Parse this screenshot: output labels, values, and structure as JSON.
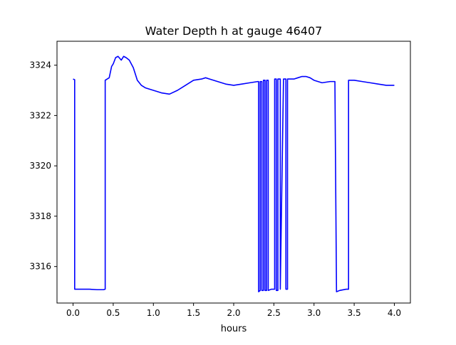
{
  "chart_data": {
    "type": "line",
    "title": "Water Depth h at gauge 46407",
    "xlabel": "hours",
    "ylabel": "",
    "xlim": [
      -0.2,
      4.2
    ],
    "ylim": [
      3314.55,
      3324.95
    ],
    "xticks": [
      0.0,
      0.5,
      1.0,
      1.5,
      2.0,
      2.5,
      3.0,
      3.5,
      4.0
    ],
    "xtick_labels": [
      "0.0",
      "0.5",
      "1.0",
      "1.5",
      "2.0",
      "2.5",
      "3.0",
      "3.5",
      "4.0"
    ],
    "yticks": [
      3316,
      3318,
      3320,
      3322,
      3324
    ],
    "ytick_labels": [
      "3316",
      "3318",
      "3320",
      "3322",
      "3324"
    ],
    "grid": false,
    "color": "#0000ff",
    "series": [
      {
        "x": [
          0.0,
          0.02,
          0.02,
          0.05,
          0.1,
          0.2,
          0.3,
          0.38,
          0.4,
          0.4,
          0.45,
          0.48,
          0.5,
          0.53,
          0.56,
          0.6,
          0.63,
          0.66,
          0.7,
          0.75,
          0.8,
          0.85,
          0.9,
          1.0,
          1.1,
          1.2,
          1.3,
          1.4,
          1.5,
          1.6,
          1.65,
          1.7,
          1.8,
          1.9,
          2.0,
          2.1,
          2.2,
          2.3,
          2.31,
          2.31,
          2.33,
          2.33,
          2.35,
          2.35,
          2.37,
          2.37,
          2.39,
          2.39,
          2.41,
          2.41,
          2.43,
          2.43,
          2.47,
          2.51,
          2.51,
          2.53,
          2.53,
          2.55,
          2.55,
          2.58,
          2.58,
          2.62,
          2.65,
          2.65,
          2.67,
          2.67,
          2.75,
          2.8,
          2.85,
          2.9,
          2.95,
          3.0,
          3.1,
          3.2,
          3.26,
          3.28,
          3.28,
          3.32,
          3.4,
          3.43,
          3.43,
          3.5,
          3.6,
          3.7,
          3.8,
          3.9,
          4.0
        ],
        "y": [
          3323.45,
          3323.42,
          3315.1,
          3315.1,
          3315.1,
          3315.1,
          3315.08,
          3315.08,
          3315.1,
          3323.4,
          3323.5,
          3323.95,
          3324.05,
          3324.3,
          3324.35,
          3324.2,
          3324.35,
          3324.3,
          3324.2,
          3323.9,
          3323.4,
          3323.2,
          3323.1,
          3323.0,
          3322.9,
          3322.85,
          3323.0,
          3323.2,
          3323.4,
          3323.45,
          3323.5,
          3323.45,
          3323.35,
          3323.25,
          3323.2,
          3323.25,
          3323.3,
          3323.35,
          3323.35,
          3315.0,
          3315.05,
          3323.35,
          3323.35,
          3315.05,
          3315.05,
          3323.4,
          3323.4,
          3315.05,
          3315.05,
          3323.4,
          3323.4,
          3315.05,
          3315.1,
          3315.1,
          3323.45,
          3323.45,
          3315.05,
          3315.05,
          3323.45,
          3323.45,
          3315.1,
          3323.45,
          3323.45,
          3315.1,
          3315.1,
          3323.45,
          3323.45,
          3323.5,
          3323.55,
          3323.55,
          3323.5,
          3323.4,
          3323.3,
          3323.35,
          3323.35,
          3315.0,
          3315.0,
          3315.05,
          3315.1,
          3315.1,
          3323.4,
          3323.4,
          3323.35,
          3323.3,
          3323.25,
          3323.2,
          3323.2
        ]
      }
    ]
  }
}
